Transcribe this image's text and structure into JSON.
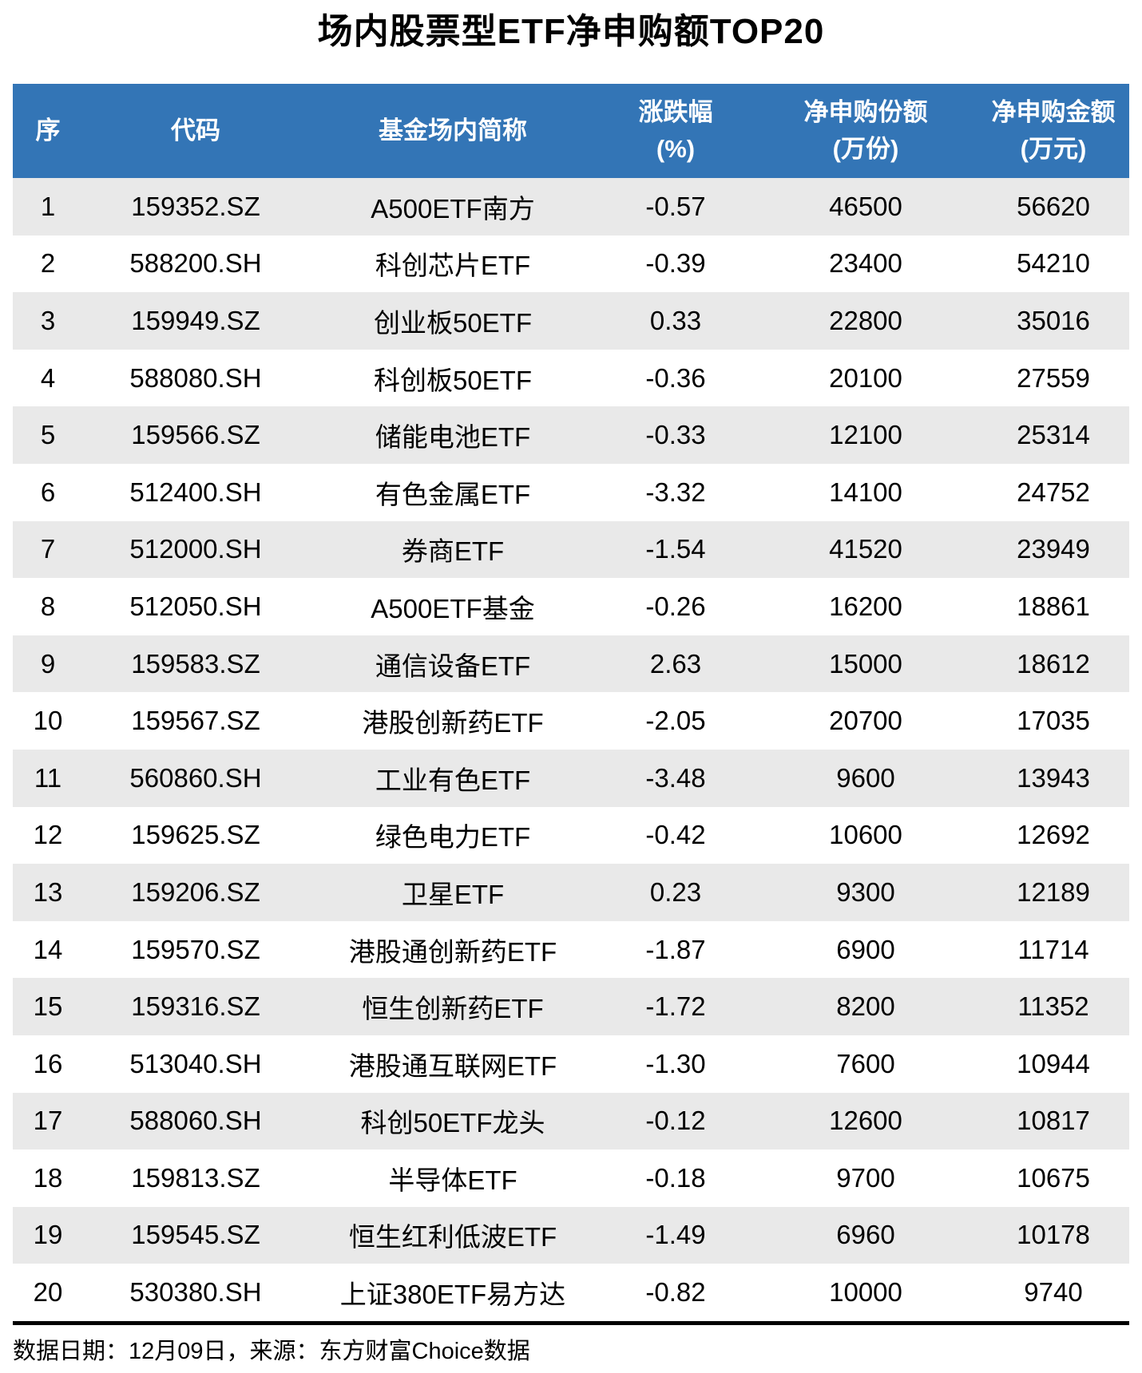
{
  "title": "场内股票型ETF净申购额TOP20",
  "header": {
    "columns": [
      {
        "label": "序",
        "sub": ""
      },
      {
        "label": "代码",
        "sub": ""
      },
      {
        "label": "基金场内简称",
        "sub": ""
      },
      {
        "label": "涨跌幅",
        "sub": "(%)"
      },
      {
        "label": "净申购份额",
        "sub": "(万份)"
      },
      {
        "label": "净申购金额",
        "sub": "(万元)"
      }
    ]
  },
  "chart_data": {
    "type": "table",
    "title": "场内股票型ETF净申购额TOP20",
    "columns": [
      "序",
      "代码",
      "基金场内简称",
      "涨跌幅(%)",
      "净申购份额(万份)",
      "净申购金额(万元)"
    ],
    "rows": [
      [
        "1",
        "159352.SZ",
        "A500ETF南方",
        "-0.57",
        "46500",
        "56620"
      ],
      [
        "2",
        "588200.SH",
        "科创芯片ETF",
        "-0.39",
        "23400",
        "54210"
      ],
      [
        "3",
        "159949.SZ",
        "创业板50ETF",
        "0.33",
        "22800",
        "35016"
      ],
      [
        "4",
        "588080.SH",
        "科创板50ETF",
        "-0.36",
        "20100",
        "27559"
      ],
      [
        "5",
        "159566.SZ",
        "储能电池ETF",
        "-0.33",
        "12100",
        "25314"
      ],
      [
        "6",
        "512400.SH",
        "有色金属ETF",
        "-3.32",
        "14100",
        "24752"
      ],
      [
        "7",
        "512000.SH",
        "券商ETF",
        "-1.54",
        "41520",
        "23949"
      ],
      [
        "8",
        "512050.SH",
        "A500ETF基金",
        "-0.26",
        "16200",
        "18861"
      ],
      [
        "9",
        "159583.SZ",
        "通信设备ETF",
        "2.63",
        "15000",
        "18612"
      ],
      [
        "10",
        "159567.SZ",
        "港股创新药ETF",
        "-2.05",
        "20700",
        "17035"
      ],
      [
        "11",
        "560860.SH",
        "工业有色ETF",
        "-3.48",
        "9600",
        "13943"
      ],
      [
        "12",
        "159625.SZ",
        "绿色电力ETF",
        "-0.42",
        "10600",
        "12692"
      ],
      [
        "13",
        "159206.SZ",
        "卫星ETF",
        "0.23",
        "9300",
        "12189"
      ],
      [
        "14",
        "159570.SZ",
        "港股通创新药ETF",
        "-1.87",
        "6900",
        "11714"
      ],
      [
        "15",
        "159316.SZ",
        "恒生创新药ETF",
        "-1.72",
        "8200",
        "11352"
      ],
      [
        "16",
        "513040.SH",
        "港股通互联网ETF",
        "-1.30",
        "7600",
        "10944"
      ],
      [
        "17",
        "588060.SH",
        "科创50ETF龙头",
        "-0.12",
        "12600",
        "10817"
      ],
      [
        "18",
        "159813.SZ",
        "半导体ETF",
        "-0.18",
        "9700",
        "10675"
      ],
      [
        "19",
        "159545.SZ",
        "恒生红利低波ETF",
        "-1.49",
        "6960",
        "10178"
      ],
      [
        "20",
        "530380.SH",
        "上证380ETF易方达",
        "-0.82",
        "10000",
        "9740"
      ]
    ]
  },
  "footer": {
    "note": "数据日期：12月09日，来源：东方财富Choice数据"
  },
  "colors": {
    "header_bg": "#3375B6",
    "header_text": "#FFFFFF",
    "stripe_bg": "#E9E9E9",
    "text": "#000000",
    "divider": "#000000"
  }
}
